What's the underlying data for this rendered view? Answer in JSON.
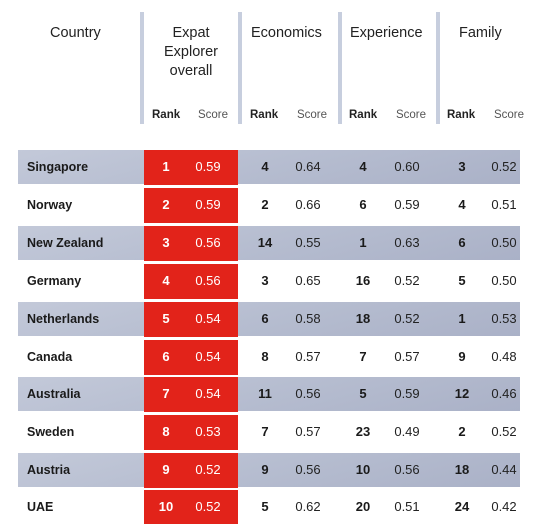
{
  "headers": {
    "country": "Country",
    "overall_lines": [
      "Expat",
      "Explorer",
      "overall"
    ],
    "economics": "Economics",
    "experience": "Experience",
    "family": "Family",
    "rank": "Rank",
    "score": "Score"
  },
  "rows": [
    {
      "country": "Singapore",
      "overall_rank": "1",
      "overall_score": "0.59",
      "econ_rank": "4",
      "econ_score": "0.64",
      "exp_rank": "4",
      "exp_score": "0.60",
      "fam_rank": "3",
      "fam_score": "0.52"
    },
    {
      "country": "Norway",
      "overall_rank": "2",
      "overall_score": "0.59",
      "econ_rank": "2",
      "econ_score": "0.66",
      "exp_rank": "6",
      "exp_score": "0.59",
      "fam_rank": "4",
      "fam_score": "0.51"
    },
    {
      "country": "New Zealand",
      "overall_rank": "3",
      "overall_score": "0.56",
      "econ_rank": "14",
      "econ_score": "0.55",
      "exp_rank": "1",
      "exp_score": "0.63",
      "fam_rank": "6",
      "fam_score": "0.50"
    },
    {
      "country": "Germany",
      "overall_rank": "4",
      "overall_score": "0.56",
      "econ_rank": "3",
      "econ_score": "0.65",
      "exp_rank": "16",
      "exp_score": "0.52",
      "fam_rank": "5",
      "fam_score": "0.50"
    },
    {
      "country": "Netherlands",
      "overall_rank": "5",
      "overall_score": "0.54",
      "econ_rank": "6",
      "econ_score": "0.58",
      "exp_rank": "18",
      "exp_score": "0.52",
      "fam_rank": "1",
      "fam_score": "0.53"
    },
    {
      "country": "Canada",
      "overall_rank": "6",
      "overall_score": "0.54",
      "econ_rank": "8",
      "econ_score": "0.57",
      "exp_rank": "7",
      "exp_score": "0.57",
      "fam_rank": "9",
      "fam_score": "0.48"
    },
    {
      "country": "Australia",
      "overall_rank": "7",
      "overall_score": "0.54",
      "econ_rank": "11",
      "econ_score": "0.56",
      "exp_rank": "5",
      "exp_score": "0.59",
      "fam_rank": "12",
      "fam_score": "0.46"
    },
    {
      "country": "Sweden",
      "overall_rank": "8",
      "overall_score": "0.53",
      "econ_rank": "7",
      "econ_score": "0.57",
      "exp_rank": "23",
      "exp_score": "0.49",
      "fam_rank": "2",
      "fam_score": "0.52"
    },
    {
      "country": "Austria",
      "overall_rank": "9",
      "overall_score": "0.52",
      "econ_rank": "9",
      "econ_score": "0.56",
      "exp_rank": "10",
      "exp_score": "0.56",
      "fam_rank": "18",
      "fam_score": "0.44"
    },
    {
      "country": "UAE",
      "overall_rank": "10",
      "overall_score": "0.52",
      "econ_rank": "5",
      "econ_score": "0.62",
      "exp_rank": "20",
      "exp_score": "0.51",
      "fam_rank": "24",
      "fam_score": "0.42"
    }
  ],
  "colors": {
    "highlight_red": "#e2231a",
    "row_shade": "#b6bdd0",
    "divider": "#c7cede"
  }
}
